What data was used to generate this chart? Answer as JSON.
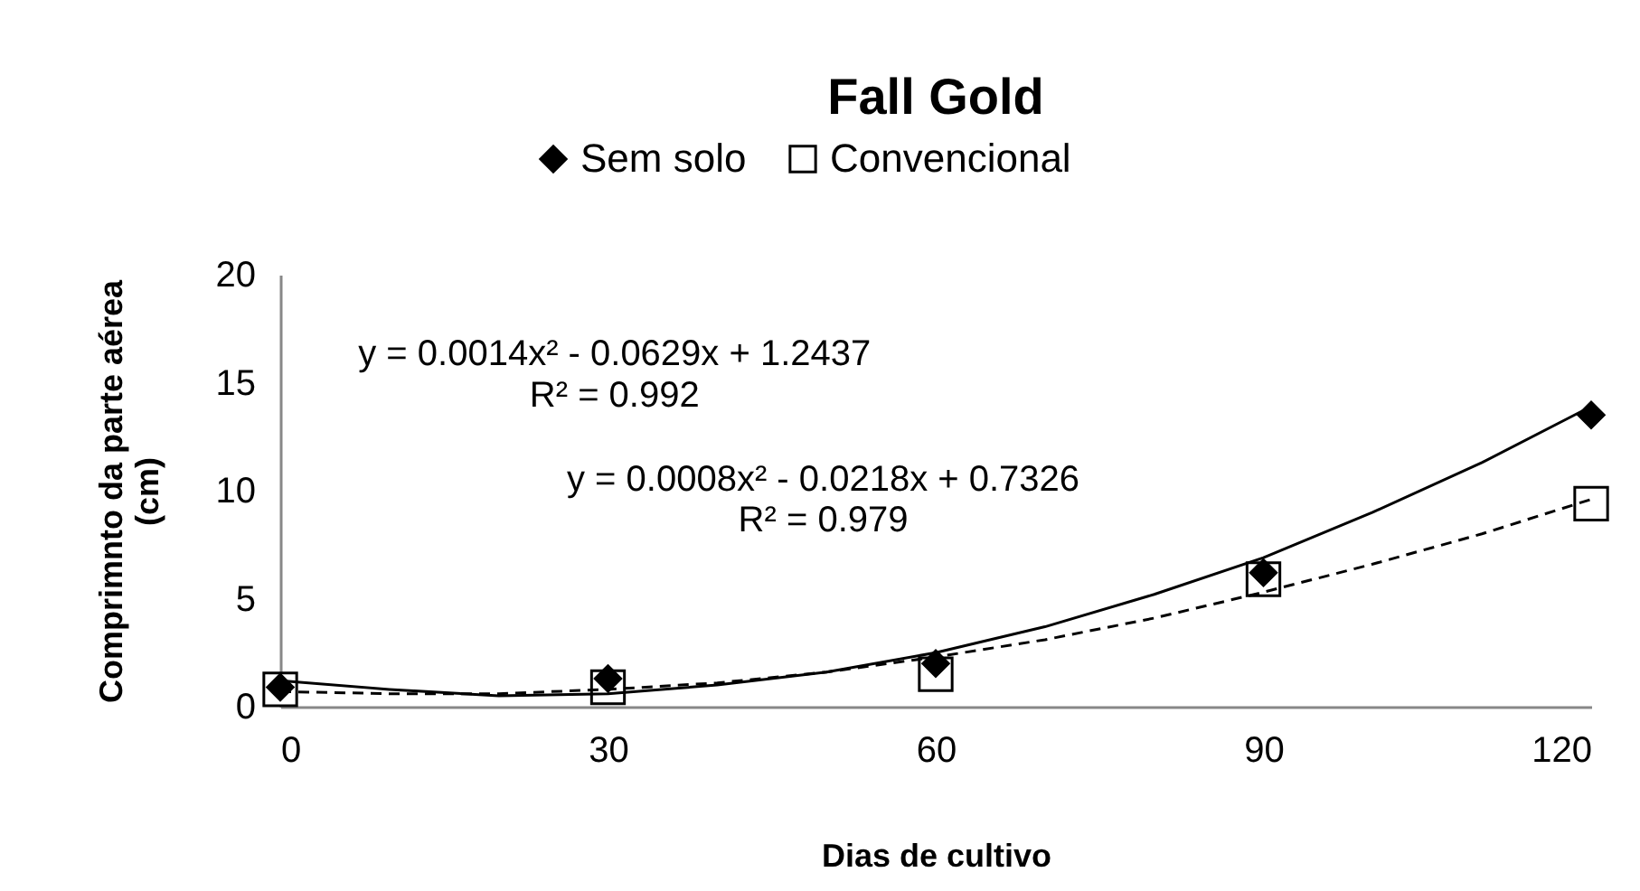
{
  "chart_data": {
    "type": "scatter",
    "title": "Fall Gold",
    "xlabel": "Dias de cultivo",
    "ylabel": "Comprimnto da parte aérea (cm)",
    "xlim": [
      0,
      120
    ],
    "xticks": [
      0,
      30,
      60,
      90,
      120
    ],
    "ylim": [
      0,
      20
    ],
    "yticks": [
      0,
      5,
      10,
      15,
      20
    ],
    "grid": false,
    "legend": "top",
    "x": [
      0,
      30,
      60,
      90,
      120
    ],
    "series": [
      {
        "name": "Sem solo",
        "color": "#000000",
        "marker": "diamond",
        "values": [
          0.9,
          1.3,
          2.0,
          6.2,
          13.5
        ]
      },
      {
        "name": "Convencional",
        "color": "#000000",
        "marker": "square",
        "values": [
          0.8,
          0.9,
          1.5,
          5.9,
          9.4
        ]
      },
      {
        "type": "line",
        "color": "#000000",
        "line_style": "solid",
        "marker": "none",
        "x": [
          0,
          10,
          20,
          30,
          40,
          50,
          60,
          70,
          80,
          90,
          100,
          110,
          120
        ],
        "values": [
          1.2,
          0.8,
          0.5,
          0.6,
          1.0,
          1.6,
          2.5,
          3.7,
          5.2,
          6.9,
          9.0,
          11.3,
          13.9
        ]
      },
      {
        "type": "line",
        "color": "#000000",
        "line_style": "dashed",
        "marker": "none",
        "x": [
          0,
          10,
          20,
          30,
          40,
          50,
          60,
          70,
          80,
          90,
          100,
          110,
          120
        ],
        "values": [
          0.7,
          0.6,
          0.6,
          0.8,
          1.1,
          1.6,
          2.3,
          3.1,
          4.1,
          5.3,
          6.6,
          8.0,
          9.6
        ]
      }
    ],
    "annotations": [
      "y = 0.0014x² - 0.0629x + 1.2437",
      "R² = 0.992",
      "y = 0.0008x² - 0.0218x + 0.7326",
      "R² = 0.979"
    ]
  }
}
